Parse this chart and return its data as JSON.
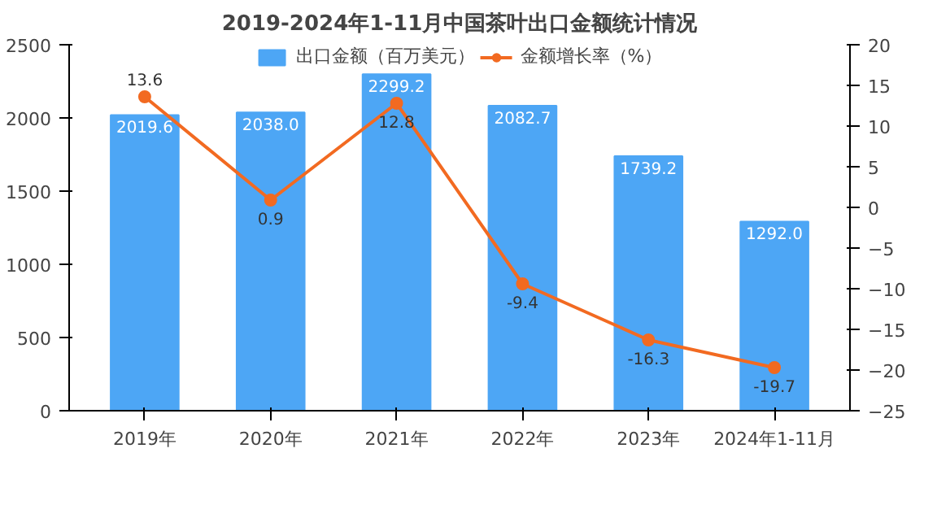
{
  "chart_data": {
    "type": "bar",
    "title": "2019-2024年1-11月中国茶叶出口金额统计情况",
    "categories": [
      "2019年",
      "2020年",
      "2021年",
      "2022年",
      "2023年",
      "2024年1-11月"
    ],
    "series": [
      {
        "name": "出口金额（百万美元）",
        "color": "#4da6f5",
        "values": [
          2019.6,
          2038.0,
          2299.2,
          2082.7,
          1739.2,
          1292.0
        ],
        "value_labels": [
          "2019.6",
          "2038.0",
          "2299.2",
          "2082.7",
          "1739.2",
          "1292.0"
        ]
      },
      {
        "name": "金额增长率（%）",
        "type": "line",
        "axis": "y2",
        "color": "#f26a21",
        "values": [
          13.6,
          0.9,
          12.8,
          -9.4,
          -16.3,
          -19.7
        ],
        "value_labels": [
          "13.6",
          "0.9",
          "12.8",
          "-9.4",
          "-16.3",
          "-19.7"
        ]
      }
    ],
    "ylim": [
      0,
      2500
    ],
    "yticks": [
      0,
      500,
      1000,
      1500,
      2000,
      2500
    ],
    "y2lim": [
      -25,
      20
    ],
    "y2ticks": [
      -25,
      -20,
      -15,
      -10,
      -5,
      0,
      5,
      10,
      15,
      20
    ],
    "legend": "top",
    "marker": "circle",
    "grid": false
  }
}
